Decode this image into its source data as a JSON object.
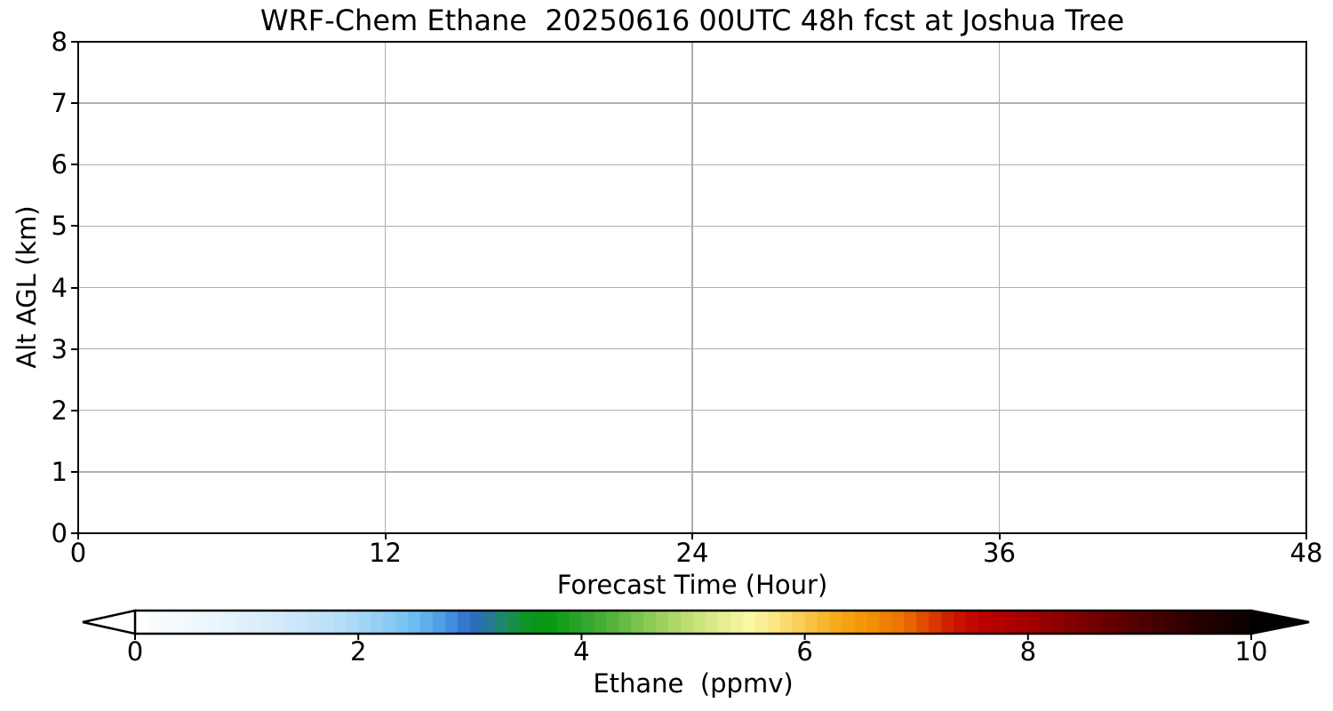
{
  "chart_data": {
    "type": "heatmap",
    "title": "WRF-Chem Ethane  20250616 00UTC 48h fcst at Joshua Tree",
    "xlabel": "Forecast Time (Hour)",
    "ylabel": "Alt AGL (km)",
    "xlim": [
      0,
      48
    ],
    "ylim": [
      0,
      8
    ],
    "xticks": [
      0,
      12,
      24,
      36,
      48
    ],
    "yticks": [
      0,
      1,
      2,
      3,
      4,
      5,
      6,
      7,
      8
    ],
    "grid": true,
    "grid_color": "#b0b0b0",
    "field": {
      "description": "no contour fill visible; ethane field uniformly at the colormap minimum across 0-48 h and 0-8 km",
      "uniform_value_ppmv": 0
    },
    "legend_position": "none"
  },
  "colorbar": {
    "label": "Ethane  (ppmv)",
    "ticks": [
      0,
      2,
      4,
      6,
      8,
      10
    ],
    "range": [
      0,
      10
    ],
    "orientation": "horizontal",
    "extend": "both",
    "segments": 90,
    "under_color": "#ffffff",
    "over_color": "#020000",
    "outline_color": "#000000",
    "anchors": [
      [
        0.0,
        "#ffffff"
      ],
      [
        0.6,
        "#eef7fd"
      ],
      [
        1.2,
        "#d8ecfb"
      ],
      [
        1.8,
        "#b9dff9"
      ],
      [
        2.2,
        "#94cff6"
      ],
      [
        2.5,
        "#6ebdf0"
      ],
      [
        2.8,
        "#4596e2"
      ],
      [
        3.0,
        "#2f6cc8"
      ],
      [
        3.15,
        "#28759f"
      ],
      [
        3.3,
        "#1e8a66"
      ],
      [
        3.5,
        "#0f9426"
      ],
      [
        3.7,
        "#05990f"
      ],
      [
        4.0,
        "#2ca42c"
      ],
      [
        4.3,
        "#58b43c"
      ],
      [
        4.6,
        "#8aca55"
      ],
      [
        5.0,
        "#c6e176"
      ],
      [
        5.3,
        "#e8f094"
      ],
      [
        5.5,
        "#f8f7a6"
      ],
      [
        5.7,
        "#fbe98a"
      ],
      [
        6.0,
        "#fac94e"
      ],
      [
        6.3,
        "#f7a818"
      ],
      [
        6.6,
        "#f39000"
      ],
      [
        6.9,
        "#ea6e00"
      ],
      [
        7.1,
        "#dd4400"
      ],
      [
        7.35,
        "#cc1400"
      ],
      [
        7.6,
        "#bd0000"
      ],
      [
        8.0,
        "#a30000"
      ],
      [
        8.5,
        "#7a0000"
      ],
      [
        9.0,
        "#500000"
      ],
      [
        9.5,
        "#290000"
      ],
      [
        10.0,
        "#080000"
      ]
    ]
  }
}
